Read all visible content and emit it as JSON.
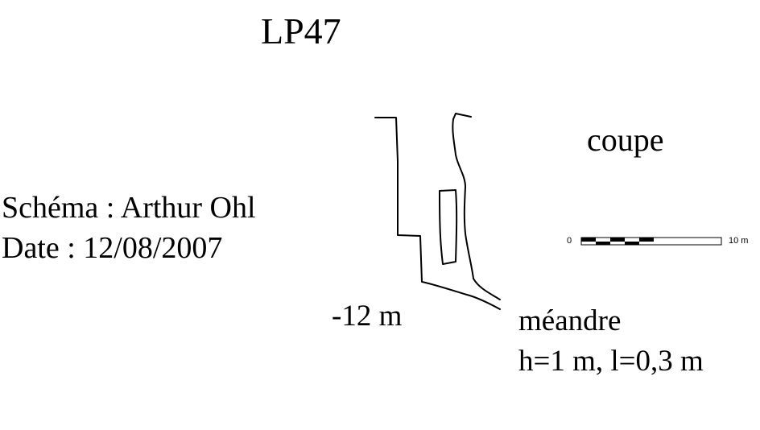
{
  "title": "LP47",
  "view": "coupe",
  "author": "Schéma : Arthur Ohl",
  "date": "Date : 12/08/2007",
  "depth_label": "-12 m",
  "feature_label": "méandre",
  "feature_dims": "h=1 m, l=0,3 m",
  "scale": {
    "start": "0",
    "end": "10 m"
  }
}
